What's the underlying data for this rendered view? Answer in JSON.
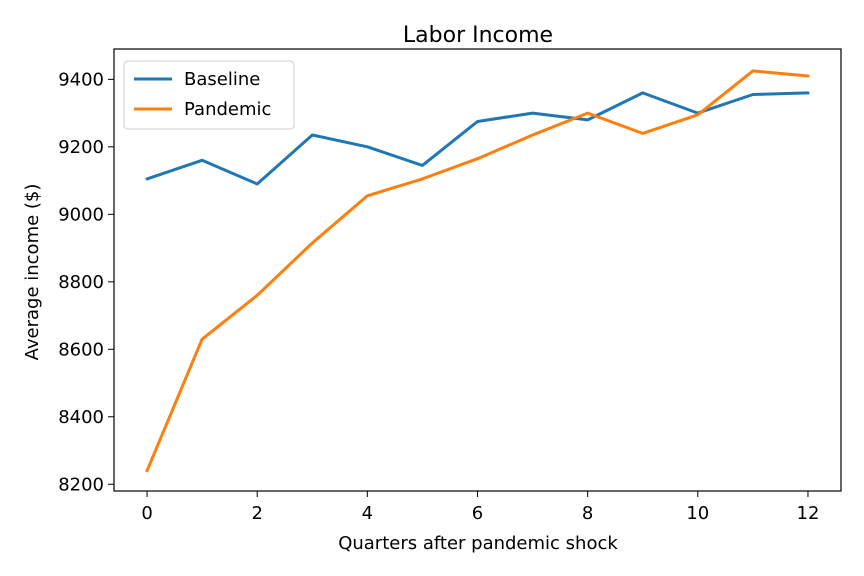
{
  "chart_data": {
    "type": "line",
    "title": "Labor Income",
    "xlabel": "Quarters after pandemic shock",
    "ylabel": "Average income ($)",
    "xlim": [
      -0.6,
      12.6
    ],
    "ylim": [
      8180,
      9490
    ],
    "xticks": [
      0,
      2,
      4,
      6,
      8,
      10,
      12
    ],
    "yticks": [
      8200,
      8400,
      8600,
      8800,
      9000,
      9200,
      9400
    ],
    "x": [
      0,
      1,
      2,
      3,
      4,
      5,
      6,
      7,
      8,
      9,
      10,
      11,
      12
    ],
    "series": [
      {
        "name": "Baseline",
        "color": "#1f77b4",
        "values": [
          9105,
          9160,
          9090,
          9235,
          9200,
          9145,
          9275,
          9300,
          9280,
          9360,
          9300,
          9355,
          9360
        ]
      },
      {
        "name": "Pandemic",
        "color": "#ff7f0e",
        "values": [
          8240,
          8630,
          8760,
          8915,
          9055,
          9105,
          9165,
          9235,
          9300,
          9240,
          9295,
          9425,
          9410
        ]
      }
    ],
    "legend_position": "upper-left",
    "grid": false
  }
}
